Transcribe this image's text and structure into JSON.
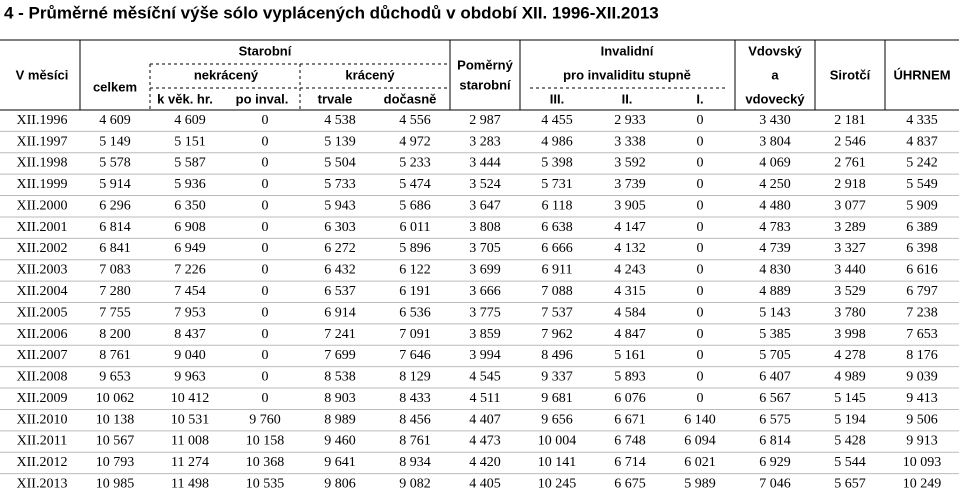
{
  "title": "4 - Průměrné měsíční výše sólo vyplácených důchodů v období XII. 1996-XII.2013",
  "header": [
    "V měsíci",
    "Starobní",
    "celkem",
    "nekrácený",
    "krácený",
    "k věk. hr.",
    "po inval.",
    "trvale",
    "dočasně",
    "Poměrný",
    "starobní",
    "Invalidní",
    "pro invaliditu stupně",
    "III.",
    "II.",
    "I.",
    "Vdovský",
    "a",
    "vdovecký",
    "Sirotčí",
    "ÚHRNEM"
  ],
  "rows": [
    {
      "label": "XII.1996",
      "values": [
        "4 609",
        "4 609",
        "0",
        "4 538",
        "4 556",
        "2 987",
        "4 455",
        "2 933",
        "0",
        "3 430",
        "2 181",
        "4 335"
      ]
    },
    {
      "label": "XII.1997",
      "values": [
        "5 149",
        "5 151",
        "0",
        "5 139",
        "4 972",
        "3 283",
        "4 986",
        "3 338",
        "0",
        "3 804",
        "2 546",
        "4 837"
      ]
    },
    {
      "label": "XII.1998",
      "values": [
        "5 578",
        "5 587",
        "0",
        "5 504",
        "5 233",
        "3 444",
        "5 398",
        "3 592",
        "0",
        "4 069",
        "2 761",
        "5 242"
      ]
    },
    {
      "label": "XII.1999",
      "values": [
        "5 914",
        "5 936",
        "0",
        "5 733",
        "5 474",
        "3 524",
        "5 731",
        "3 739",
        "0",
        "4 250",
        "2 918",
        "5 549"
      ]
    },
    {
      "label": "XII.2000",
      "values": [
        "6 296",
        "6 350",
        "0",
        "5 943",
        "5 686",
        "3 647",
        "6 118",
        "3 905",
        "0",
        "4 480",
        "3 077",
        "5 909"
      ]
    },
    {
      "label": "XII.2001",
      "values": [
        "6 814",
        "6 908",
        "0",
        "6 303",
        "6 011",
        "3 808",
        "6 638",
        "4 147",
        "0",
        "4 783",
        "3 289",
        "6 389"
      ]
    },
    {
      "label": "XII.2002",
      "values": [
        "6 841",
        "6 949",
        "0",
        "6 272",
        "5 896",
        "3 705",
        "6 666",
        "4 132",
        "0",
        "4 739",
        "3 327",
        "6 398"
      ]
    },
    {
      "label": "XII.2003",
      "values": [
        "7 083",
        "7 226",
        "0",
        "6 432",
        "6 122",
        "3 699",
        "6 911",
        "4 243",
        "0",
        "4 830",
        "3 440",
        "6 616"
      ]
    },
    {
      "label": "XII.2004",
      "values": [
        "7 280",
        "7 454",
        "0",
        "6 537",
        "6 191",
        "3 666",
        "7 088",
        "4 315",
        "0",
        "4 889",
        "3 529",
        "6 797"
      ]
    },
    {
      "label": "XII.2005",
      "values": [
        "7 755",
        "7 953",
        "0",
        "6 914",
        "6 536",
        "3 775",
        "7 537",
        "4 584",
        "0",
        "5 143",
        "3 780",
        "7 238"
      ]
    },
    {
      "label": "XII.2006",
      "values": [
        "8 200",
        "8 437",
        "0",
        "7 241",
        "7 091",
        "3 859",
        "7 962",
        "4 847",
        "0",
        "5 385",
        "3 998",
        "7 653"
      ]
    },
    {
      "label": "XII.2007",
      "values": [
        "8 761",
        "9 040",
        "0",
        "7 699",
        "7 646",
        "3 994",
        "8 496",
        "5 161",
        "0",
        "5 705",
        "4 278",
        "8 176"
      ]
    },
    {
      "label": "XII.2008",
      "values": [
        "9 653",
        "9 963",
        "0",
        "8 538",
        "8 129",
        "4 545",
        "9 337",
        "5 893",
        "0",
        "6 407",
        "4 989",
        "9 039"
      ]
    },
    {
      "label": "XII.2009",
      "values": [
        "10 062",
        "10 412",
        "0",
        "8 903",
        "8 433",
        "4 511",
        "9 681",
        "6 076",
        "0",
        "6 567",
        "5 145",
        "9 413"
      ]
    },
    {
      "label": "XII.2010",
      "values": [
        "10 138",
        "10 531",
        "9 760",
        "8 989",
        "8 456",
        "4 407",
        "9 656",
        "6 671",
        "6 140",
        "6 575",
        "5 194",
        "9 506"
      ]
    },
    {
      "label": "XII.2011",
      "values": [
        "10 567",
        "11 008",
        "10 158",
        "9 460",
        "8 761",
        "4 473",
        "10 004",
        "6 748",
        "6 094",
        "6 814",
        "5 428",
        "9 913"
      ]
    },
    {
      "label": "XII.2012",
      "values": [
        "10 793",
        "11 274",
        "10 368",
        "9 641",
        "8 934",
        "4 420",
        "10 141",
        "6 714",
        "6 021",
        "6 929",
        "5 544",
        "10 093"
      ]
    },
    {
      "label": "XII.2013",
      "values": [
        "10 985",
        "11 498",
        "10 535",
        "9 806",
        "9 082",
        "4 405",
        "10 245",
        "6 675",
        "5 989",
        "7 046",
        "5 657",
        "10 249"
      ]
    }
  ]
}
